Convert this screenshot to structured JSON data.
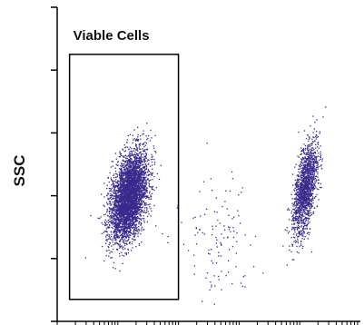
{
  "chart_data": {
    "type": "scatter",
    "title": "",
    "xlabel": "",
    "ylabel": "SSC",
    "x_scale": "log",
    "xlim": [
      1,
      100000
    ],
    "ylim": [
      0,
      1000
    ],
    "grid": false,
    "gates": [
      {
        "label": "Viable Cells",
        "shape": "rectangle",
        "x_range": [
          1.6,
          100
        ],
        "y_range": [
          70,
          850
        ]
      }
    ],
    "populations": [
      {
        "name": "",
        "x_center": 15,
        "x_spread_log": 0.28,
        "y_center": 400,
        "y_spread": 140,
        "count": 4200,
        "y_range": [
          90,
          800
        ]
      },
      {
        "name": "",
        "x_center": 12000,
        "x_spread_log": 0.17,
        "y_center": 420,
        "y_spread": 150,
        "count": 1600,
        "y_range": [
          90,
          760
        ]
      },
      {
        "name": "",
        "x_center": 400,
        "x_spread_log": 0.6,
        "y_center": 250,
        "y_spread": 200,
        "count": 120,
        "y_range": [
          40,
          700
        ]
      }
    ],
    "point_color": "#3a2a8c"
  }
}
